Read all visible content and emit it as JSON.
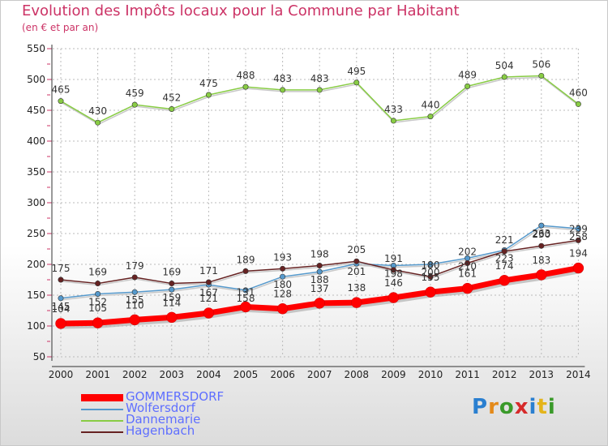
{
  "chart_data": {
    "type": "line",
    "title": "Evolution des Impôts locaux pour la Commune par Habitant",
    "subtitle": "(en € et par an)",
    "x": [
      "2000",
      "2001",
      "2002",
      "2003",
      "2004",
      "2005",
      "2006",
      "2007",
      "2008",
      "2009",
      "2010",
      "2011",
      "2012",
      "2013",
      "2014"
    ],
    "ylim": [
      50,
      550
    ],
    "yticks": [
      50,
      100,
      150,
      200,
      250,
      300,
      350,
      400,
      450,
      500,
      550
    ],
    "series": [
      {
        "name": "Dannemarie",
        "color": "#88cc44",
        "values": [
          465,
          430,
          459,
          452,
          475,
          488,
          483,
          483,
          495,
          433,
          440,
          489,
          504,
          506,
          460
        ]
      },
      {
        "name": "Wolfersdorf",
        "color": "#5599cc",
        "values": [
          145,
          152,
          155,
          159,
          167,
          158,
          180,
          188,
          201,
          198,
          200,
          210,
          223,
          263,
          258
        ]
      },
      {
        "name": "Hagenbach",
        "color": "#662222",
        "values": [
          175,
          169,
          179,
          169,
          171,
          189,
          193,
          198,
          205,
          191,
          180,
          202,
          221,
          230,
          239
        ]
      },
      {
        "name": "GOMMERSDORF",
        "color": "#ff0000",
        "values": [
          104,
          105,
          110,
          114,
          121,
          131,
          128,
          137,
          138,
          146,
          155,
          161,
          174,
          183,
          194
        ]
      }
    ],
    "legend": [
      "GOMMERSDORF",
      "Wolfersdorf",
      "Dannemarie",
      "Hagenbach"
    ],
    "grid": true
  },
  "logo": {
    "letters": [
      "P",
      "r",
      "o",
      "x",
      "i",
      "t",
      "i"
    ]
  }
}
